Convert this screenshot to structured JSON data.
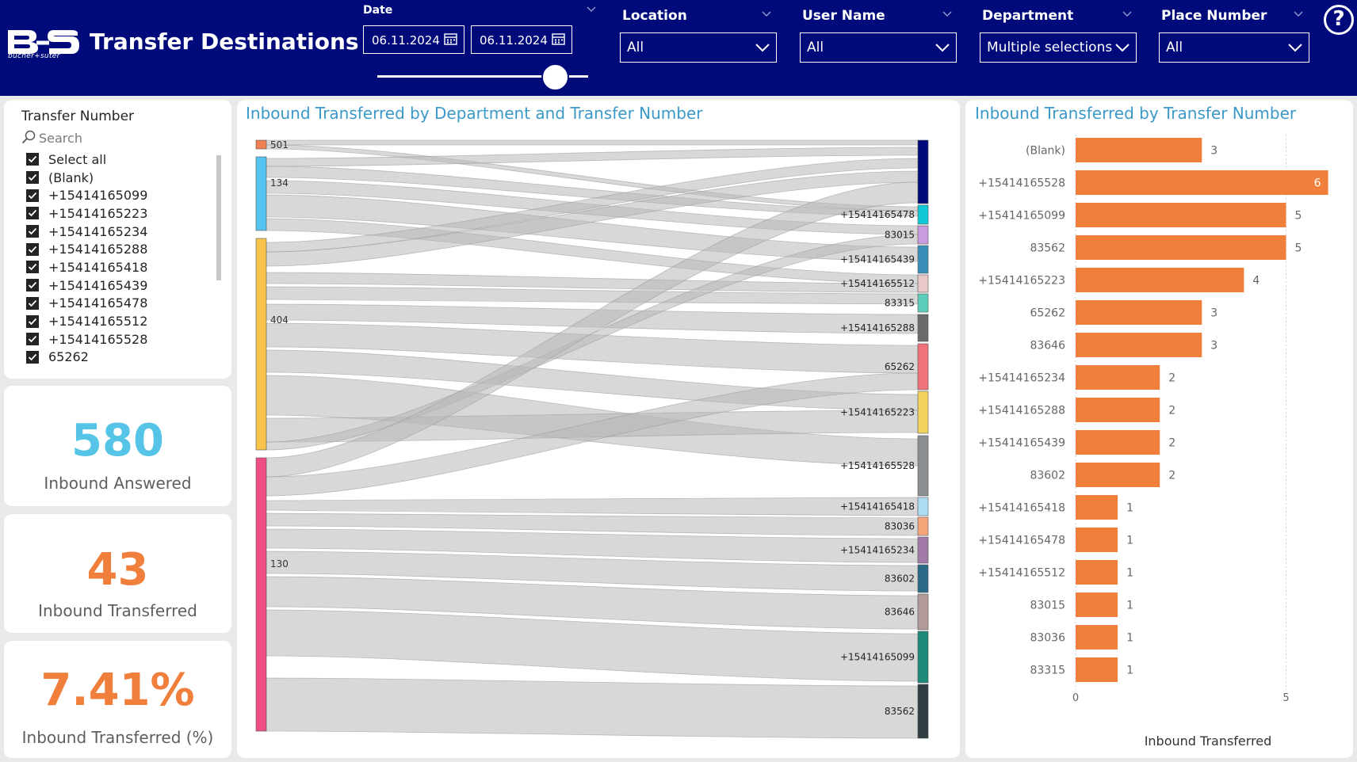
{
  "header": {
    "brand_sub": "bucher+suter",
    "title": "Transfer Destinations",
    "date": {
      "label": "Date",
      "start": "06.11.2024",
      "end": "06.11.2024"
    },
    "slicers": [
      {
        "label": "Location",
        "value": "All"
      },
      {
        "label": "User Name",
        "value": "All"
      },
      {
        "label": "Department",
        "value": "Multiple selections"
      },
      {
        "label": "Place Number",
        "value": "All"
      }
    ],
    "help": "?"
  },
  "transfer_list": {
    "title": "Transfer Number",
    "search_placeholder": "Search",
    "items": [
      "Select all",
      "(Blank)",
      "+15414165099",
      "+15414165223",
      "+15414165234",
      "+15414165288",
      "+15414165418",
      "+15414165439",
      "+15414165478",
      "+15414165512",
      "+15414165528",
      "65262"
    ]
  },
  "kpis": [
    {
      "value": "580",
      "label": "Inbound Answered",
      "color": "#56c4e6"
    },
    {
      "value": "43",
      "label": "Inbound Transferred",
      "color": "#f07f3c"
    },
    {
      "value": "7.41%",
      "label": "Inbound Transferred (%)",
      "color": "#f07f3c"
    }
  ],
  "sankey": {
    "title": "Inbound Transferred by Department and Transfer Number",
    "sources": [
      {
        "name": "501",
        "color": "#f07f52"
      },
      {
        "name": "134",
        "color": "#56c4f0"
      },
      {
        "name": "404",
        "color": "#f8c449"
      },
      {
        "name": "130",
        "color": "#ee4d86"
      }
    ],
    "targets": [
      {
        "name": "",
        "color": "#000a7a"
      },
      {
        "name": "+15414165478",
        "color": "#10c8d8"
      },
      {
        "name": "83015",
        "color": "#c99be0"
      },
      {
        "name": "+15414165439",
        "color": "#3a8fb8"
      },
      {
        "name": "+15414165512",
        "color": "#e8c8c8"
      },
      {
        "name": "83315",
        "color": "#5ccdb8"
      },
      {
        "name": "+15414165288",
        "color": "#6a6a6a"
      },
      {
        "name": "65262",
        "color": "#f0727a"
      },
      {
        "name": "+15414165223",
        "color": "#f2d45c"
      },
      {
        "name": "+15414165528",
        "color": "#8a9092"
      },
      {
        "name": "+15414165418",
        "color": "#aedcf2"
      },
      {
        "name": "83036",
        "color": "#f5a57a"
      },
      {
        "name": "+15414165234",
        "color": "#a27aa8"
      },
      {
        "name": "83602",
        "color": "#2a6a86"
      },
      {
        "name": "83646",
        "color": "#b09a9a"
      },
      {
        "name": "+15414165099",
        "color": "#1e8a7a"
      },
      {
        "name": "83562",
        "color": "#2e3e42"
      }
    ]
  },
  "chart_data": {
    "type": "bar",
    "orientation": "horizontal",
    "title": "Inbound Transferred by Transfer Number",
    "xlabel": "Inbound Transferred",
    "ylabel": "",
    "xlim": [
      0,
      6
    ],
    "xticks": [
      0,
      5
    ],
    "bar_color": "#f07f3c",
    "categories": [
      "(Blank)",
      "+15414165528",
      "+15414165099",
      "83562",
      "+15414165223",
      "65262",
      "83646",
      "+15414165234",
      "+15414165288",
      "+15414165439",
      "83602",
      "+15414165418",
      "+15414165478",
      "+15414165512",
      "83015",
      "83036",
      "83315"
    ],
    "values": [
      3,
      6,
      5,
      5,
      4,
      3,
      3,
      2,
      2,
      2,
      2,
      1,
      1,
      1,
      1,
      1,
      1
    ]
  }
}
